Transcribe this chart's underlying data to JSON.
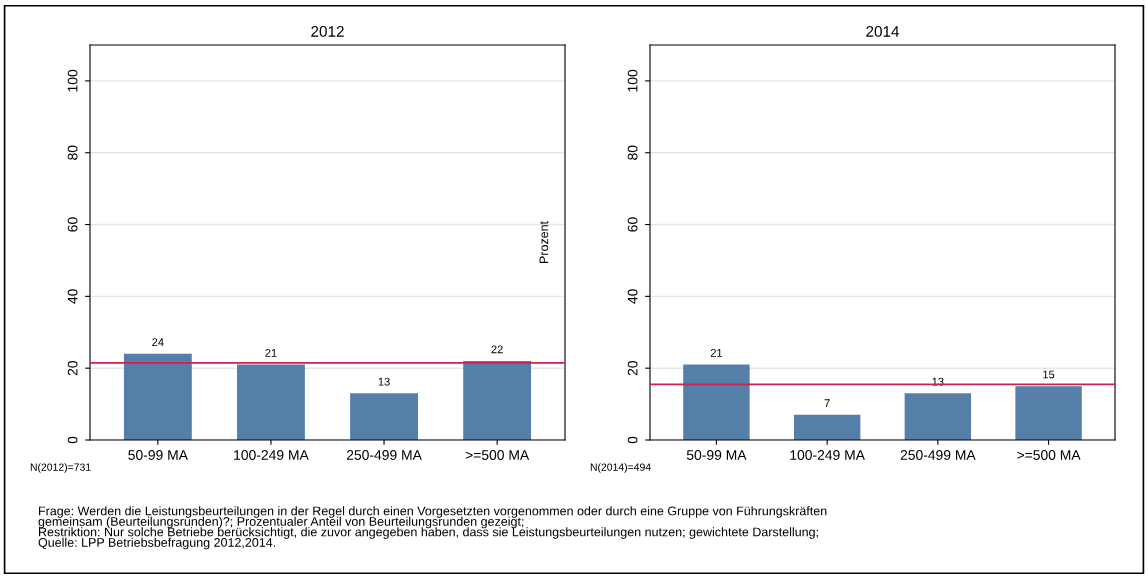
{
  "chart_data": [
    {
      "type": "bar",
      "title": "2012",
      "ylabel": "Prozent",
      "categories": [
        "50-99 MA",
        "100-249 MA",
        "250-499 MA",
        ">=500 MA"
      ],
      "values": [
        24,
        21,
        13,
        22
      ],
      "color": "#557ea8",
      "data_labels": true,
      "ylim": [
        0,
        110
      ],
      "yticks": [
        0,
        20,
        40,
        60,
        80,
        100
      ],
      "grid": "y",
      "ref_lines": [
        {
          "axis": "y",
          "value": 21.5,
          "color": "#d0204f"
        }
      ],
      "annotations": [
        "N(2012)=731",
        "Frage: Werden die Leistungsbeurteilungen in der Regel durch einen Vorgesetzten vorgenommen oder durch eine Gruppe von Führungskräften",
        "gemeinsam (Beurteilungsrunden)?; Prozentualer Anteil von Beurteilungsrunden gezeigt;",
        "Restriktion: Nur solche Betriebe berücksichtigt, die zuvor angegeben haben, dass sie Leistungsbeurteilungen nutzen; gewichtete Darstellung;",
        "Quelle: LPP Betriebsbefragung 2012,2014."
      ]
    },
    {
      "type": "bar",
      "title": "2014",
      "categories": [
        "50-99 MA",
        "100-249 MA",
        "250-499 MA",
        ">=500 MA"
      ],
      "values": [
        21,
        7,
        13,
        15
      ],
      "color": "#557ea8",
      "data_labels": true,
      "ylim": [
        0,
        110
      ],
      "yticks": [
        0,
        20,
        40,
        60,
        80,
        100
      ],
      "grid": "y",
      "ref_lines": [
        {
          "axis": "y",
          "value": 15.5,
          "color": "#d0204f"
        }
      ],
      "annotations": [
        "N(2014)=494"
      ]
    }
  ]
}
